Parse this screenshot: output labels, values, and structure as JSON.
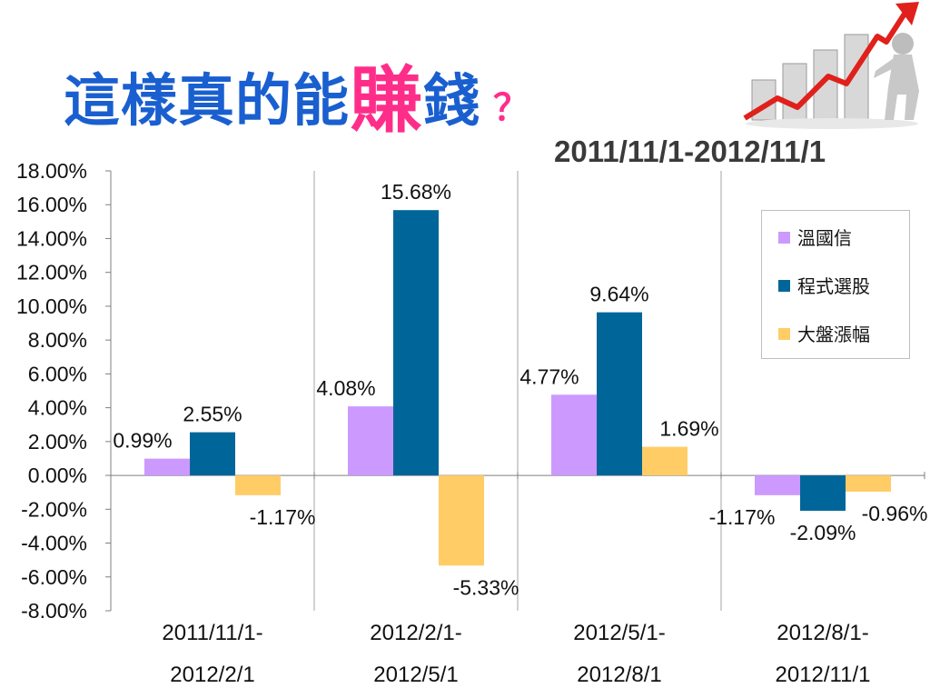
{
  "title": {
    "main": "這樣真的能",
    "highlight": "賺",
    "tail": "錢",
    "question": "？"
  },
  "subtitle": "2011/11/1-2012/11/1",
  "colors": {
    "series1": "#cc99ff",
    "series2": "#006699",
    "series3": "#ffcc66",
    "title": "#1a5fd0",
    "highlight": "#ff2d8a"
  },
  "chart_data": {
    "type": "bar",
    "categories": [
      [
        "2011/11/1-",
        "2012/2/1"
      ],
      [
        "2012/2/1-",
        "2012/5/1"
      ],
      [
        "2012/5/1-",
        "2012/8/1"
      ],
      [
        "2012/8/1-",
        "2012/11/1"
      ]
    ],
    "series": [
      {
        "name": "溫國信",
        "values": [
          0.99,
          4.08,
          4.77,
          -1.17
        ],
        "labels": [
          "0.99%",
          "4.08%",
          "4.77%",
          "-1.17%"
        ]
      },
      {
        "name": "程式選股",
        "values": [
          2.55,
          15.68,
          9.64,
          -2.09
        ],
        "labels": [
          "2.55%",
          "15.68%",
          "9.64%",
          "-2.09%"
        ]
      },
      {
        "name": "大盤漲幅",
        "values": [
          -1.17,
          -5.33,
          1.69,
          -0.96
        ],
        "labels": [
          "-1.17%",
          "-5.33%",
          "1.69%",
          "-0.96%"
        ]
      }
    ],
    "ylim": [
      -8,
      18
    ],
    "yticks": [
      "18.00%",
      "16.00%",
      "14.00%",
      "12.00%",
      "10.00%",
      "8.00%",
      "6.00%",
      "4.00%",
      "2.00%",
      "0.00%",
      "-2.00%",
      "-4.00%",
      "-6.00%",
      "-8.00%"
    ],
    "legend_position": "right",
    "grid": "vertical category separators"
  }
}
